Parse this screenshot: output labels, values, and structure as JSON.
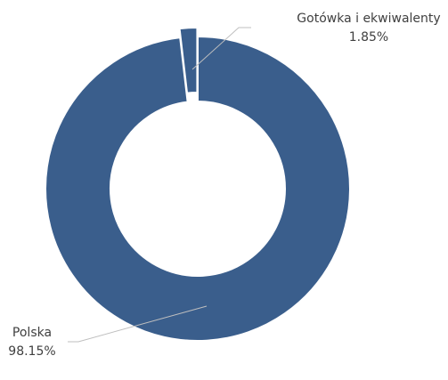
{
  "chart_data": {
    "type": "pie",
    "variant": "donut",
    "title": "",
    "slices": [
      {
        "label": "Polska",
        "value": 98.15,
        "value_label": "98.15%",
        "color": "#3a5e8c"
      },
      {
        "label": "Gotówka i ekwiwalenty",
        "value": 1.85,
        "value_label": "1.85%",
        "color": "#3a5e8c",
        "exploded": true
      }
    ],
    "legend": "none",
    "data_labels": "outside-with-leader-lines"
  }
}
